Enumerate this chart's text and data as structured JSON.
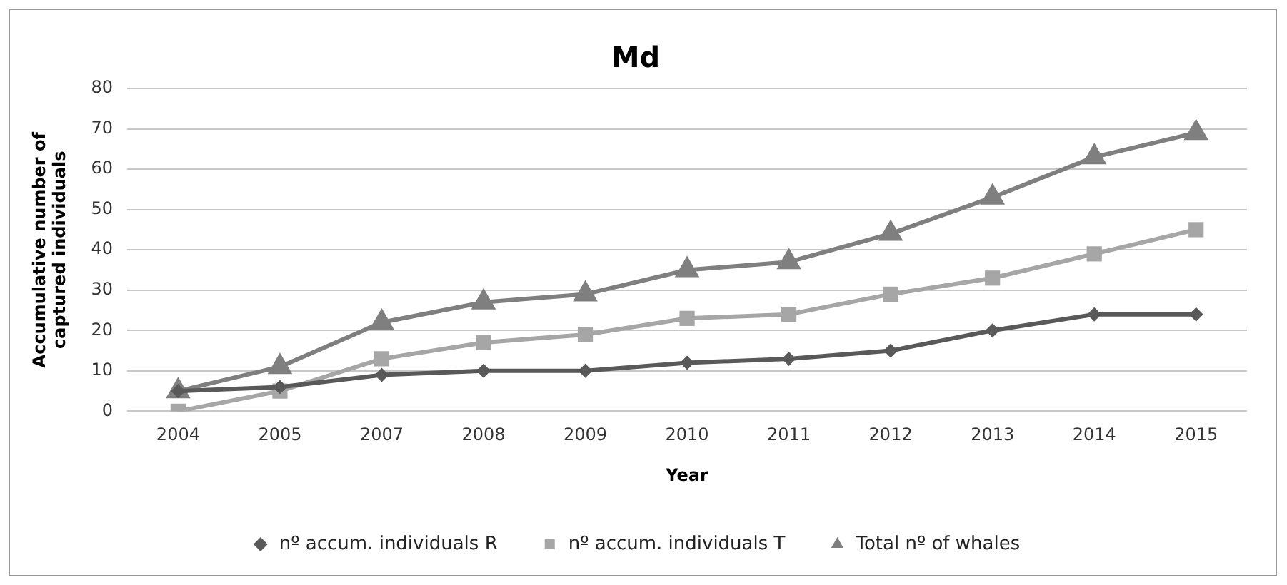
{
  "chart_data": {
    "type": "line",
    "title": "Md",
    "xlabel": "Year",
    "ylabel": "Accumulative number of captured individuals",
    "categories": [
      "2004",
      "2005",
      "2007",
      "2008",
      "2009",
      "2010",
      "2011",
      "2012",
      "2013",
      "2014",
      "2015"
    ],
    "series": [
      {
        "name": "nº accum. individuals R",
        "color": "#595959",
        "marker": "diamond",
        "values": [
          5,
          6,
          9,
          10,
          10,
          12,
          13,
          15,
          20,
          24,
          24
        ]
      },
      {
        "name": "nº accum. individuals T",
        "color": "#a6a6a6",
        "marker": "square",
        "values": [
          0,
          5,
          13,
          17,
          19,
          23,
          24,
          29,
          33,
          39,
          45
        ]
      },
      {
        "name": "Total nº of whales",
        "color": "#7f7f7f",
        "marker": "triangle",
        "values": [
          5,
          11,
          22,
          27,
          29,
          35,
          37,
          44,
          53,
          63,
          69
        ]
      }
    ],
    "ylim": [
      0,
      80
    ],
    "yticks": [
      0,
      10,
      20,
      30,
      40,
      50,
      60,
      70,
      80
    ],
    "grid": "y",
    "legend": "bottom",
    "line_style": "solid"
  }
}
